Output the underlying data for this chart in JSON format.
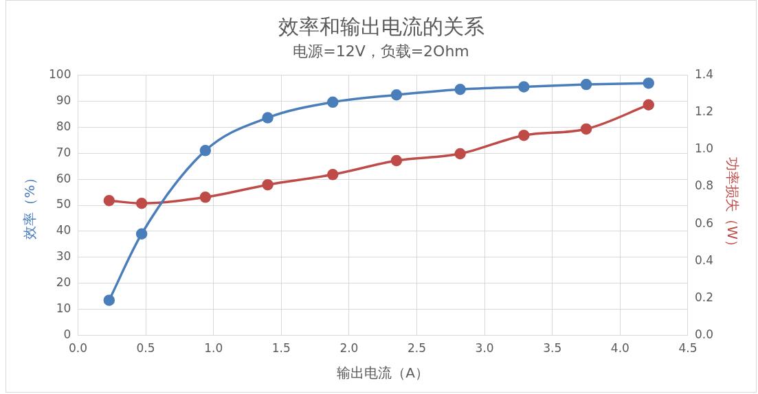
{
  "chart_data": {
    "type": "line",
    "title": "效率和输出电流的关系",
    "subtitle": "电源=12V，负载=2Ohm",
    "xlabel": "输出电流（A）",
    "ylabel": "效率（%）",
    "y2label": "功率损失（W）",
    "x": [
      0.23,
      0.47,
      0.94,
      1.4,
      1.88,
      2.35,
      2.82,
      3.29,
      3.75,
      4.21
    ],
    "series": [
      {
        "color": "#4a7ebb",
        "values": [
          13.5,
          39,
          71,
          83.6,
          89.6,
          92.4,
          94.5,
          95.5,
          96.4,
          96.9
        ]
      },
      {
        "color": "#be4b48",
        "axis": "y2",
        "values": [
          0.725,
          0.71,
          0.743,
          0.81,
          0.865,
          0.94,
          0.977,
          1.076,
          1.11,
          1.24
        ]
      }
    ],
    "xlim": [
      0,
      4.5
    ],
    "xticks": [
      {
        "value": 0,
        "label": "0.0"
      },
      {
        "value": 0.5,
        "label": "0.5"
      },
      {
        "value": 1,
        "label": "1.0"
      },
      {
        "value": 1.5,
        "label": "1.5"
      },
      {
        "value": 2,
        "label": "2.0"
      },
      {
        "value": 2.5,
        "label": "2.5"
      },
      {
        "value": 3,
        "label": "3.0"
      },
      {
        "value": 3.5,
        "label": "3.5"
      },
      {
        "value": 4,
        "label": "4.0"
      },
      {
        "value": 4.5,
        "label": "4.5"
      }
    ],
    "ylim": [
      0,
      100
    ],
    "yticks": [
      0,
      10,
      20,
      30,
      40,
      50,
      60,
      70,
      80,
      90,
      100
    ],
    "y2lim": [
      0,
      1.4
    ],
    "y2ticks": [
      {
        "value": 0,
        "label": "0.0"
      },
      {
        "value": 0.2,
        "label": "0.2"
      },
      {
        "value": 0.4,
        "label": "0.4"
      },
      {
        "value": 0.6,
        "label": "0.6"
      },
      {
        "value": 0.8,
        "label": "0.8"
      },
      {
        "value": 1,
        "label": "1.0"
      },
      {
        "value": 1.2,
        "label": "1.2"
      },
      {
        "value": 1.4,
        "label": "1.4"
      }
    ],
    "grid": true,
    "legend": false,
    "marker": "circle",
    "line_style": "solid"
  }
}
